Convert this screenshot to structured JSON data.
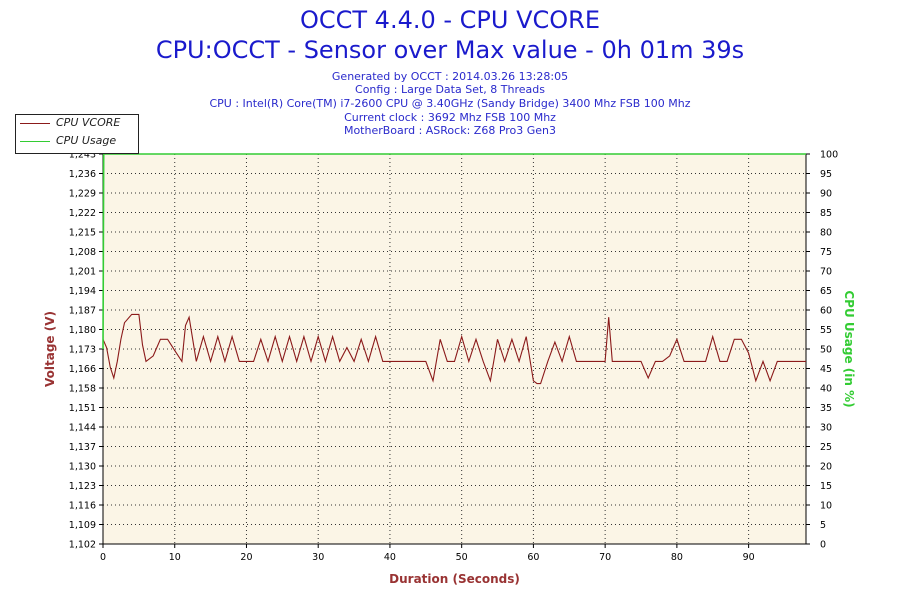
{
  "header": {
    "title": "OCCT 4.4.0 - CPU VCORE",
    "subtitle": "CPU:OCCT - Sensor over Max value - 0h 01m 39s",
    "info_lines": [
      "Generated by OCCT : 2014.03.26 13:28:05",
      "Config : Large Data Set, 8 Threads",
      "CPU : Intel(R) Core(TM) i7-2600 CPU @ 3.40GHz (Sandy Bridge) 3400 Mhz FSB 100 Mhz",
      "Current clock : 3692 Mhz FSB 100 Mhz",
      "MotherBoard : ASRock: Z68 Pro3 Gen3"
    ]
  },
  "colors": {
    "background": "#ffffff",
    "plot_background": "#fbf5e6",
    "grid": "#333333",
    "vcore": "#8b1a1a",
    "usage": "#33cc33",
    "title": "#1a1acc",
    "axis_label_left": "#993333",
    "axis_label_right": "#33cc33",
    "axis_label_bottom": "#993333"
  },
  "chart_data": {
    "type": "line",
    "xlabel": "Duration (Seconds)",
    "ylabel": "Voltage (V)",
    "y2label": "CPU Usage (in %)",
    "xlim": [
      0,
      98
    ],
    "ylim": [
      1.102,
      1.243
    ],
    "y2lim": [
      0,
      100
    ],
    "x_ticks": [
      "0",
      "10",
      "20",
      "30",
      "40",
      "50",
      "60",
      "70",
      "80",
      "90"
    ],
    "y_ticks": [
      "1,102",
      "1,109",
      "1,116",
      "1,123",
      "1,130",
      "1,137",
      "1,144",
      "1,151",
      "1,158",
      "1,166",
      "1,173",
      "1,180",
      "1,187",
      "1,194",
      "1,201",
      "1,208",
      "1,215",
      "1,222",
      "1,229",
      "1,236",
      "1,243"
    ],
    "y2_ticks": [
      "0",
      "5",
      "10",
      "15",
      "20",
      "25",
      "30",
      "35",
      "40",
      "45",
      "50",
      "55",
      "60",
      "65",
      "70",
      "75",
      "80",
      "85",
      "90",
      "95",
      "100"
    ],
    "grid": true,
    "legend_position": "top-left",
    "series": [
      {
        "name": "CPU VCORE",
        "axis": "left",
        "x": [
          0,
          0.5,
          1,
          1.5,
          2,
          2.5,
          3,
          4,
          5,
          5.5,
          6,
          7,
          8,
          9,
          10,
          11,
          11.5,
          12,
          13,
          14,
          15,
          16,
          17,
          18,
          19,
          20,
          21,
          22,
          23,
          24,
          25,
          26,
          27,
          28,
          29,
          30,
          31,
          32,
          33,
          34,
          35,
          36,
          37,
          38,
          39,
          40,
          41,
          42,
          43,
          44,
          45,
          46,
          47,
          48,
          49,
          50,
          51,
          52,
          53,
          54,
          55,
          56,
          57,
          58,
          59,
          60,
          60.5,
          61,
          62,
          63,
          64,
          65,
          66,
          67,
          68,
          69,
          70,
          70.5,
          71,
          72,
          73,
          74,
          75,
          76,
          77,
          78,
          79,
          80,
          81,
          82,
          83,
          84,
          85,
          86,
          87,
          88,
          89,
          90,
          91,
          92,
          93,
          94,
          95,
          96,
          97,
          98
        ],
        "y": [
          1.176,
          1.173,
          1.166,
          1.162,
          1.168,
          1.176,
          1.182,
          1.185,
          1.185,
          1.174,
          1.168,
          1.17,
          1.176,
          1.176,
          1.172,
          1.168,
          1.181,
          1.184,
          1.168,
          1.177,
          1.168,
          1.177,
          1.168,
          1.177,
          1.168,
          1.168,
          1.168,
          1.176,
          1.168,
          1.177,
          1.168,
          1.177,
          1.168,
          1.177,
          1.168,
          1.177,
          1.168,
          1.177,
          1.168,
          1.173,
          1.168,
          1.176,
          1.168,
          1.177,
          1.168,
          1.168,
          1.168,
          1.168,
          1.168,
          1.168,
          1.168,
          1.161,
          1.176,
          1.168,
          1.168,
          1.177,
          1.168,
          1.176,
          1.168,
          1.161,
          1.176,
          1.168,
          1.176,
          1.168,
          1.177,
          1.161,
          1.16,
          1.16,
          1.168,
          1.175,
          1.168,
          1.177,
          1.168,
          1.168,
          1.168,
          1.168,
          1.168,
          1.184,
          1.168,
          1.168,
          1.168,
          1.168,
          1.168,
          1.162,
          1.168,
          1.168,
          1.17,
          1.176,
          1.168,
          1.168,
          1.168,
          1.168,
          1.177,
          1.168,
          1.168,
          1.176,
          1.176,
          1.171,
          1.161,
          1.168,
          1.161,
          1.168,
          1.168,
          1.168,
          1.168,
          1.168
        ]
      },
      {
        "name": "CPU Usage",
        "axis": "right",
        "x": [
          0,
          0.1,
          98
        ],
        "y": [
          50,
          100,
          100
        ]
      }
    ]
  }
}
